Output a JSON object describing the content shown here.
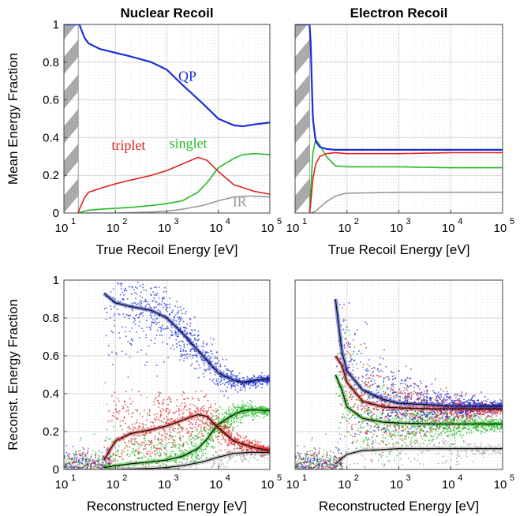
{
  "colors": {
    "QP": "#1a2fd6",
    "triplet": "#e02020",
    "singlet": "#22bb22",
    "IR": "#999999",
    "hatch": "#aaaaaa"
  },
  "chart_data": [
    {
      "type": "line",
      "title": "Nuclear Recoil",
      "xlabel": "True Recoil Energy [eV]",
      "ylabel": "Mean Energy Fraction",
      "xscale": "log",
      "xlim": [
        10,
        100000
      ],
      "ylim": [
        0,
        1
      ],
      "xticks": [
        "10",
        "10",
        "10",
        "10",
        "10"
      ],
      "xtick_exponents": [
        "1",
        "2",
        "3",
        "4",
        "5"
      ],
      "yticks": [
        "0",
        "0.2",
        "0.4",
        "0.6",
        "0.8",
        "1"
      ],
      "grid": true,
      "threshold_hatch_x": 19,
      "series": [
        {
          "name": "QP",
          "x": [
            10,
            19,
            20,
            25,
            30,
            50,
            100,
            200,
            500,
            1000,
            2000,
            5000,
            10000,
            20000,
            30000,
            50000,
            100000
          ],
          "y": [
            1.0,
            1.0,
            1.0,
            0.93,
            0.9,
            0.87,
            0.85,
            0.83,
            0.8,
            0.76,
            0.68,
            0.58,
            0.5,
            0.465,
            0.46,
            0.47,
            0.48
          ]
        },
        {
          "name": "triplet",
          "x": [
            19,
            20,
            25,
            30,
            50,
            100,
            200,
            500,
            1000,
            2000,
            4000,
            6000,
            10000,
            20000,
            50000,
            100000
          ],
          "y": [
            0.0,
            0.02,
            0.08,
            0.11,
            0.13,
            0.155,
            0.175,
            0.2,
            0.225,
            0.26,
            0.295,
            0.28,
            0.22,
            0.15,
            0.115,
            0.1
          ]
        },
        {
          "name": "singlet",
          "x": [
            19,
            25,
            30,
            50,
            100,
            200,
            500,
            1000,
            2000,
            4000,
            6000,
            10000,
            20000,
            30000,
            50000,
            100000
          ],
          "y": [
            0.0,
            0.01,
            0.015,
            0.02,
            0.025,
            0.03,
            0.04,
            0.05,
            0.065,
            0.11,
            0.16,
            0.24,
            0.29,
            0.31,
            0.315,
            0.31
          ]
        },
        {
          "name": "IR",
          "x": [
            19,
            100,
            500,
            1000,
            2000,
            5000,
            10000,
            20000,
            40000,
            100000
          ],
          "y": [
            0.0,
            0.0,
            0.005,
            0.01,
            0.02,
            0.04,
            0.065,
            0.085,
            0.09,
            0.085
          ]
        }
      ],
      "annotations": [
        {
          "text": "QP",
          "series": "QP",
          "x": 2500,
          "y": 0.7
        },
        {
          "text": "triplet",
          "series": "triplet",
          "x": 180,
          "y": 0.335
        },
        {
          "text": "singlet",
          "series": "singlet",
          "x": 2600,
          "y": 0.345
        },
        {
          "text": "IR",
          "series": "IR",
          "x": 26000,
          "y": 0.035
        }
      ]
    },
    {
      "type": "line",
      "title": "Electron Recoil",
      "xlabel": "True Recoil Energy [eV]",
      "ylabel": "",
      "xscale": "log",
      "xlim": [
        10,
        100000
      ],
      "ylim": [
        0,
        1
      ],
      "xticks": [
        "10",
        "10",
        "10",
        "10",
        "10"
      ],
      "xtick_exponents": [
        "1",
        "2",
        "3",
        "4",
        "5"
      ],
      "yticks": [],
      "grid": true,
      "threshold_hatch_x": 19,
      "series": [
        {
          "name": "QP",
          "x": [
            10,
            19,
            20,
            22,
            25,
            30,
            40,
            60,
            100,
            1000,
            10000,
            100000
          ],
          "y": [
            1.0,
            1.0,
            0.9,
            0.5,
            0.38,
            0.35,
            0.34,
            0.335,
            0.335,
            0.335,
            0.335,
            0.335
          ]
        },
        {
          "name": "triplet",
          "x": [
            19,
            20,
            22,
            25,
            30,
            40,
            60,
            100,
            1000,
            10000,
            100000
          ],
          "y": [
            0.0,
            0.05,
            0.18,
            0.26,
            0.3,
            0.315,
            0.32,
            0.315,
            0.315,
            0.32,
            0.32
          ]
        },
        {
          "name": "singlet",
          "x": [
            19,
            20,
            22,
            25,
            30,
            40,
            60,
            100,
            1000,
            10000,
            100000
          ],
          "y": [
            0.0,
            0.12,
            0.32,
            0.39,
            0.36,
            0.3,
            0.25,
            0.245,
            0.245,
            0.24,
            0.24
          ]
        },
        {
          "name": "IR",
          "x": [
            19,
            20,
            25,
            30,
            40,
            60,
            80,
            100,
            1000,
            10000,
            100000
          ],
          "y": [
            0.0,
            0.0,
            0.01,
            0.03,
            0.06,
            0.09,
            0.1,
            0.105,
            0.11,
            0.11,
            0.11
          ]
        }
      ]
    },
    {
      "type": "scatter",
      "title": "",
      "xlabel": "Reconstructed Energy [eV]",
      "ylabel": "Reconst. Energy Fraction",
      "xscale": "log",
      "xlim": [
        10,
        100000
      ],
      "ylim": [
        0,
        1
      ],
      "xticks": [
        "10",
        "10",
        "10",
        "10",
        "10"
      ],
      "xtick_exponents": [
        "1",
        "2",
        "3",
        "4",
        "5"
      ],
      "yticks": [
        "0",
        "0.2",
        "0.4",
        "0.6",
        "0.8",
        "1"
      ],
      "grid": true,
      "series": [
        {
          "name": "QP",
          "x": [
            60,
            100,
            200,
            500,
            1000,
            2000,
            5000,
            10000,
            20000,
            30000,
            50000,
            100000
          ],
          "y": [
            0.93,
            0.88,
            0.86,
            0.84,
            0.8,
            0.72,
            0.6,
            0.51,
            0.47,
            0.46,
            0.47,
            0.48
          ]
        },
        {
          "name": "triplet",
          "x": [
            60,
            100,
            200,
            500,
            1000,
            2000,
            4000,
            6000,
            10000,
            20000,
            50000,
            100000
          ],
          "y": [
            0.05,
            0.15,
            0.19,
            0.21,
            0.23,
            0.26,
            0.29,
            0.28,
            0.22,
            0.15,
            0.115,
            0.1
          ]
        },
        {
          "name": "singlet",
          "x": [
            60,
            100,
            200,
            500,
            1000,
            2000,
            4000,
            6000,
            10000,
            20000,
            30000,
            50000,
            100000
          ],
          "y": [
            0.01,
            0.02,
            0.03,
            0.04,
            0.05,
            0.07,
            0.11,
            0.16,
            0.24,
            0.29,
            0.31,
            0.315,
            0.31
          ]
        },
        {
          "name": "IR",
          "x": [
            60,
            100,
            500,
            1000,
            2000,
            5000,
            10000,
            20000,
            40000,
            100000
          ],
          "y": [
            0.0,
            0.0,
            0.005,
            0.01,
            0.02,
            0.04,
            0.065,
            0.085,
            0.09,
            0.09
          ]
        }
      ]
    },
    {
      "type": "scatter",
      "title": "",
      "xlabel": "Reconstructed Energy [eV]",
      "ylabel": "",
      "xscale": "log",
      "xlim": [
        10,
        100000
      ],
      "ylim": [
        0,
        1
      ],
      "xticks": [
        "10",
        "10",
        "10",
        "10",
        "10"
      ],
      "xtick_exponents": [
        "1",
        "2",
        "3",
        "4",
        "5"
      ],
      "yticks": [],
      "grid": true,
      "series": [
        {
          "name": "QP",
          "x": [
            60,
            80,
            100,
            200,
            500,
            1000,
            5000,
            10000,
            100000
          ],
          "y": [
            0.9,
            0.62,
            0.52,
            0.42,
            0.37,
            0.35,
            0.34,
            0.335,
            0.335
          ]
        },
        {
          "name": "triplet",
          "x": [
            60,
            80,
            100,
            200,
            500,
            1000,
            5000,
            10000,
            100000
          ],
          "y": [
            0.6,
            0.55,
            0.46,
            0.36,
            0.33,
            0.325,
            0.32,
            0.32,
            0.32
          ]
        },
        {
          "name": "singlet",
          "x": [
            60,
            80,
            100,
            200,
            500,
            1000,
            5000,
            10000,
            100000
          ],
          "y": [
            0.5,
            0.42,
            0.33,
            0.27,
            0.25,
            0.245,
            0.24,
            0.24,
            0.24
          ]
        },
        {
          "name": "IR",
          "x": [
            60,
            100,
            200,
            500,
            1000,
            10000,
            100000
          ],
          "y": [
            0.03,
            0.08,
            0.1,
            0.105,
            0.11,
            0.11,
            0.11
          ]
        }
      ]
    }
  ]
}
